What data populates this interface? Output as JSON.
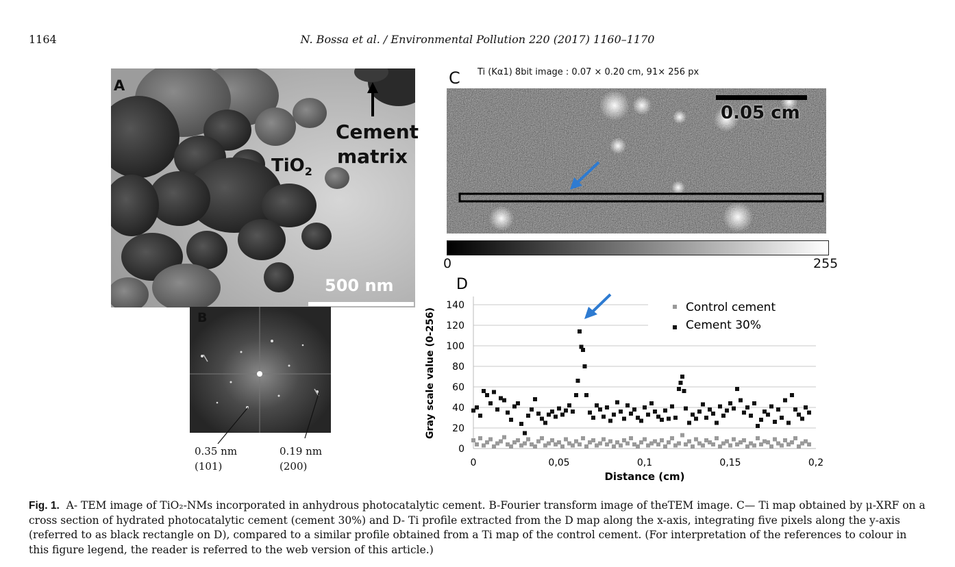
{
  "page": {
    "number": "1164",
    "running_head": "N. Bossa et al. / Environmental Pollution 220 (2017) 1160–1170"
  },
  "panel_a": {
    "letter": "A",
    "tio2_label": "TiO",
    "tio2_sub": "2",
    "cement_label_1": "Cement",
    "cement_label_2": "matrix",
    "scale_label": "500 nm"
  },
  "panel_b": {
    "letter": "B",
    "left_label_1": "0.35 nm",
    "left_label_2": "(101)",
    "right_label_1": "0.19 nm",
    "right_label_2": "(200)"
  },
  "panel_c": {
    "letter": "C",
    "title": "Ti (Kα1) 8bit image : 0.07 × 0.20 cm, 91× 256 px",
    "scale_label": "0.05 cm",
    "gradient_min": "0",
    "gradient_max": "255"
  },
  "chart_data": {
    "type": "scatter",
    "letter": "D",
    "xlabel": "Distance (cm)",
    "ylabel": "Gray scale value (0-256)",
    "xlim": [
      0,
      0.2
    ],
    "ylim": [
      0,
      140
    ],
    "xticks": [
      "0",
      "0,05",
      "0,1",
      "0,15",
      "0,2"
    ],
    "yticks": [
      "0",
      "20",
      "40",
      "60",
      "80",
      "100",
      "120",
      "140"
    ],
    "grid": true,
    "legend_position": "top-right",
    "series": [
      {
        "name": "Control cement",
        "color": "#9a9a9a",
        "x": [
          0.0,
          0.002,
          0.004,
          0.006,
          0.008,
          0.01,
          0.012,
          0.014,
          0.016,
          0.018,
          0.02,
          0.022,
          0.024,
          0.026,
          0.028,
          0.03,
          0.032,
          0.034,
          0.036,
          0.038,
          0.04,
          0.042,
          0.044,
          0.046,
          0.048,
          0.05,
          0.052,
          0.054,
          0.056,
          0.058,
          0.06,
          0.062,
          0.064,
          0.066,
          0.068,
          0.07,
          0.072,
          0.074,
          0.076,
          0.078,
          0.08,
          0.082,
          0.084,
          0.086,
          0.088,
          0.09,
          0.092,
          0.094,
          0.096,
          0.098,
          0.1,
          0.102,
          0.104,
          0.106,
          0.108,
          0.11,
          0.112,
          0.114,
          0.116,
          0.118,
          0.12,
          0.122,
          0.124,
          0.126,
          0.128,
          0.13,
          0.132,
          0.134,
          0.136,
          0.138,
          0.14,
          0.142,
          0.144,
          0.146,
          0.148,
          0.15,
          0.152,
          0.154,
          0.156,
          0.158,
          0.16,
          0.162,
          0.164,
          0.166,
          0.168,
          0.17,
          0.172,
          0.174,
          0.176,
          0.178,
          0.18,
          0.182,
          0.184,
          0.186,
          0.188,
          0.19,
          0.192,
          0.194,
          0.196
        ],
        "y": [
          8,
          4,
          10,
          3,
          6,
          9,
          2,
          5,
          7,
          11,
          4,
          2,
          6,
          8,
          3,
          5,
          9,
          4,
          2,
          7,
          10,
          3,
          5,
          8,
          4,
          6,
          2,
          9,
          5,
          3,
          7,
          4,
          10,
          2,
          6,
          8,
          3,
          5,
          9,
          4,
          7,
          2,
          6,
          3,
          8,
          5,
          10,
          4,
          2,
          6,
          9,
          3,
          5,
          7,
          4,
          8,
          2,
          6,
          10,
          3,
          5,
          13,
          4,
          7,
          2,
          9,
          5,
          3,
          8,
          6,
          4,
          10,
          2,
          5,
          7,
          3,
          9,
          4,
          6,
          8,
          2,
          5,
          3,
          10,
          4,
          7,
          6,
          2,
          9,
          5,
          3,
          8,
          4,
          6,
          10,
          2,
          5,
          7,
          4
        ]
      },
      {
        "name": "Cement 30%",
        "color": "#111111",
        "x": [
          0.0,
          0.002,
          0.004,
          0.006,
          0.008,
          0.01,
          0.012,
          0.014,
          0.016,
          0.018,
          0.02,
          0.022,
          0.024,
          0.026,
          0.028,
          0.03,
          0.032,
          0.034,
          0.036,
          0.038,
          0.04,
          0.042,
          0.044,
          0.046,
          0.048,
          0.05,
          0.052,
          0.054,
          0.056,
          0.058,
          0.06,
          0.061,
          0.062,
          0.063,
          0.064,
          0.065,
          0.066,
          0.068,
          0.07,
          0.072,
          0.074,
          0.076,
          0.078,
          0.08,
          0.082,
          0.084,
          0.086,
          0.088,
          0.09,
          0.092,
          0.094,
          0.096,
          0.098,
          0.1,
          0.102,
          0.104,
          0.106,
          0.108,
          0.11,
          0.112,
          0.114,
          0.116,
          0.118,
          0.12,
          0.121,
          0.122,
          0.123,
          0.124,
          0.126,
          0.128,
          0.13,
          0.132,
          0.134,
          0.136,
          0.138,
          0.14,
          0.142,
          0.144,
          0.146,
          0.148,
          0.15,
          0.152,
          0.154,
          0.156,
          0.158,
          0.16,
          0.162,
          0.164,
          0.166,
          0.168,
          0.17,
          0.172,
          0.174,
          0.176,
          0.178,
          0.18,
          0.182,
          0.184,
          0.186,
          0.188,
          0.19,
          0.192,
          0.194,
          0.196
        ],
        "y": [
          37,
          40,
          32,
          56,
          52,
          44,
          55,
          38,
          49,
          47,
          35,
          28,
          41,
          44,
          24,
          15,
          32,
          38,
          48,
          34,
          29,
          25,
          33,
          36,
          31,
          39,
          33,
          37,
          42,
          36,
          52,
          66,
          114,
          99,
          96,
          80,
          52,
          35,
          30,
          42,
          38,
          31,
          40,
          27,
          33,
          45,
          36,
          29,
          42,
          34,
          38,
          30,
          27,
          40,
          33,
          44,
          36,
          31,
          28,
          37,
          29,
          41,
          30,
          58,
          64,
          70,
          56,
          39,
          25,
          33,
          29,
          36,
          43,
          30,
          38,
          34,
          25,
          41,
          32,
          37,
          44,
          39,
          58,
          47,
          35,
          40,
          32,
          44,
          22,
          28,
          36,
          33,
          41,
          26,
          38,
          30,
          47,
          25,
          52,
          38,
          33,
          29,
          40,
          35
        ]
      }
    ]
  },
  "caption": {
    "label": "Fig. 1.",
    "text": "A- TEM image of TiO₂-NMs incorporated in anhydrous photocatalytic cement. B-Fourier transform image of theTEM image. C— Ti map obtained by μ-XRF on a cross section of hydrated photocatalytic cement (cement 30%) and D- Ti profile extracted from the D map along the x-axis, integrating five pixels along the y-axis (referred to as black rectangle on D), compared to a similar profile obtained from a Ti map of the control cement. (For interpretation of the references to colour in this figure legend, the reader is referred to the web version of this article.)"
  },
  "colors": {
    "arrow_blue": "#2e7bd1"
  }
}
